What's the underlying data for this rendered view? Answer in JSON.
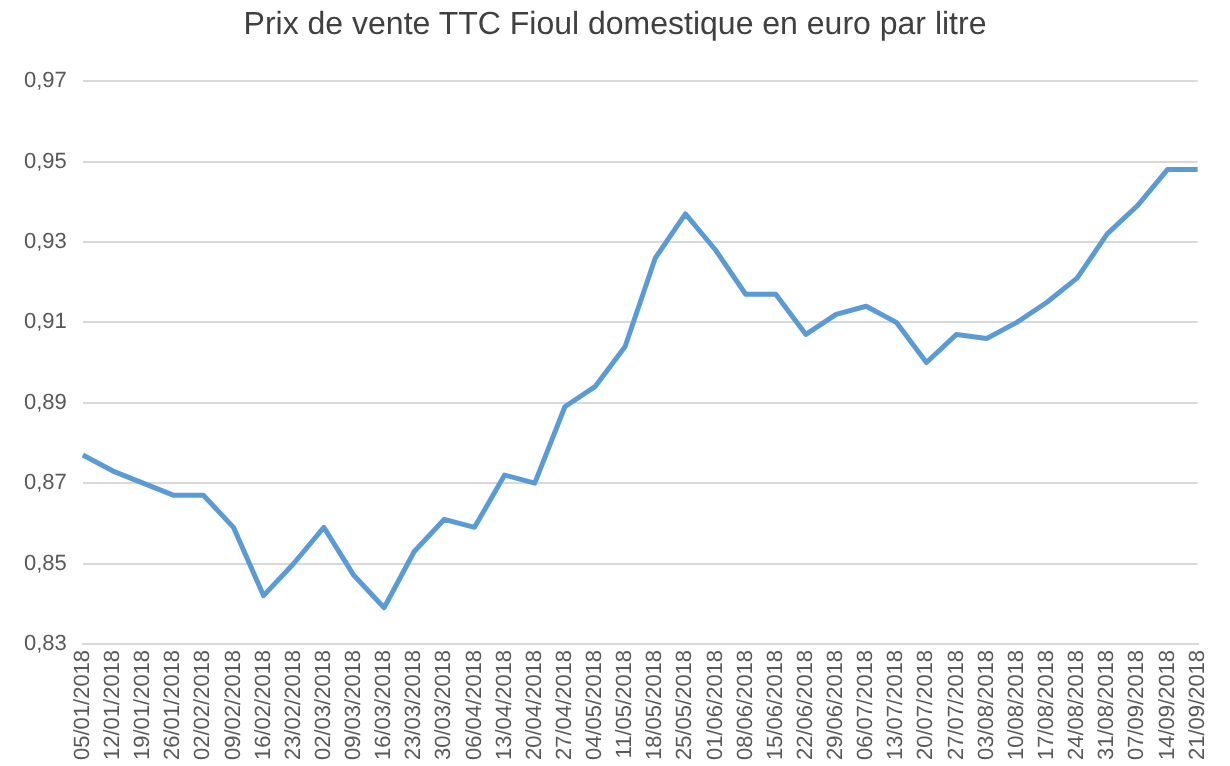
{
  "chart_data": {
    "type": "line",
    "title": "Prix de vente TTC Fioul domestique en euro par litre",
    "categories": [
      "05/01/2018",
      "12/01/2018",
      "19/01/2018",
      "26/01/2018",
      "02/02/2018",
      "09/02/2018",
      "16/02/2018",
      "23/02/2018",
      "02/03/2018",
      "09/03/2018",
      "16/03/2018",
      "23/03/2018",
      "30/03/2018",
      "06/04/2018",
      "13/04/2018",
      "20/04/2018",
      "27/04/2018",
      "04/05/2018",
      "11/05/2018",
      "18/05/2018",
      "25/05/2018",
      "01/06/2018",
      "08/06/2018",
      "15/06/2018",
      "22/06/2018",
      "29/06/2018",
      "06/07/2018",
      "13/07/2018",
      "20/07/2018",
      "27/07/2018",
      "03/08/2018",
      "10/08/2018",
      "17/08/2018",
      "24/08/2018",
      "31/08/2018",
      "07/09/2018",
      "14/09/2018",
      "21/09/2018"
    ],
    "series": [
      {
        "color": "#5b9bd5",
        "values": [
          0.877,
          0.873,
          0.87,
          0.867,
          0.867,
          0.859,
          0.842,
          0.85,
          0.859,
          0.847,
          0.839,
          0.853,
          0.861,
          0.859,
          0.872,
          0.87,
          0.889,
          0.894,
          0.904,
          0.926,
          0.937,
          0.928,
          0.917,
          0.917,
          0.907,
          0.912,
          0.914,
          0.91,
          0.9,
          0.907,
          0.906,
          0.91,
          0.915,
          0.921,
          0.932,
          0.939,
          0.948,
          0.948
        ]
      }
    ],
    "ylim": [
      0.83,
      0.97
    ],
    "yticks": [
      {
        "value": 0.83,
        "label": "0,83"
      },
      {
        "value": 0.85,
        "label": "0,85"
      },
      {
        "value": 0.87,
        "label": "0,87"
      },
      {
        "value": 0.89,
        "label": "0,89"
      },
      {
        "value": 0.91,
        "label": "0,91"
      },
      {
        "value": 0.93,
        "label": "0,93"
      },
      {
        "value": 0.95,
        "label": "0,95"
      },
      {
        "value": 0.97,
        "label": "0,97"
      }
    ],
    "grid": "y",
    "legend": false,
    "marker": "none",
    "line_style": "solid"
  }
}
